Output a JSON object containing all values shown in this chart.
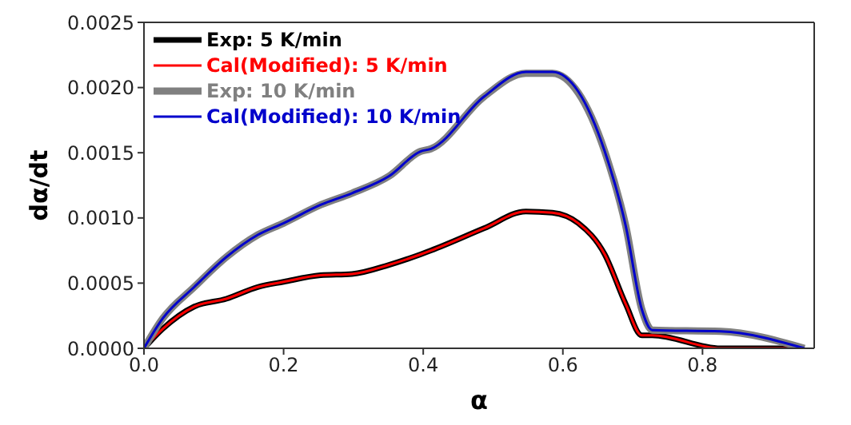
{
  "chart_data": {
    "type": "line",
    "xlabel": "α",
    "ylabel": "dα/dt",
    "xlim": [
      0,
      0.96
    ],
    "ylim": [
      0,
      0.0025
    ],
    "xticks": [
      {
        "value": 0,
        "label": "0.0"
      },
      {
        "value": 0.2,
        "label": "0.2"
      },
      {
        "value": 0.4,
        "label": "0.4"
      },
      {
        "value": 0.6,
        "label": "0.6"
      },
      {
        "value": 0.8,
        "label": "0.8"
      }
    ],
    "yticks": [
      {
        "value": 0,
        "label": "0.0000"
      },
      {
        "value": 0.0005,
        "label": "0.0005"
      },
      {
        "value": 0.001,
        "label": "0.0010"
      },
      {
        "value": 0.0015,
        "label": "0.0015"
      },
      {
        "value": 0.002,
        "label": "0.0020"
      },
      {
        "value": 0.0025,
        "label": "0.0025"
      }
    ],
    "legend": "top left",
    "marker": "none",
    "line_style": "solid",
    "grid": false,
    "x": [
      0,
      0.027,
      0.072,
      0.118,
      0.163,
      0.2,
      0.253,
      0.298,
      0.351,
      0.396,
      0.411,
      0.487,
      0.547,
      0.585,
      0.622,
      0.66,
      0.69,
      0.713,
      0.728,
      0.826,
      0.946
    ],
    "series": [
      {
        "name": "Exp: 5 K/min",
        "color": "#000000",
        "values": [
          0,
          0.00015,
          0.00032,
          0.00038,
          0.00047,
          0.00051,
          0.00056,
          0.00057,
          0.00064,
          0.00072,
          0.00075,
          0.00092,
          0.00105,
          0.00104,
          0.00096,
          0.00072,
          0.00034,
          0.0001,
          0.0001,
          0,
          0
        ]
      },
      {
        "name": "Cal(Modified): 5 K/min",
        "color": "#ff0000",
        "values": [
          0,
          0.00015,
          0.00032,
          0.00038,
          0.00047,
          0.00051,
          0.00056,
          0.00057,
          0.00064,
          0.00072,
          0.00075,
          0.00092,
          0.00105,
          0.00104,
          0.00096,
          0.00072,
          0.00034,
          0.0001,
          0.0001,
          0,
          0
        ]
      },
      {
        "name": "Exp: 10 K/min",
        "color": "#808080",
        "values": [
          0,
          0.00023,
          0.00047,
          0.0007,
          0.00087,
          0.00096,
          0.0011,
          0.00119,
          0.00132,
          0.00151,
          0.00153,
          0.00193,
          0.00211,
          0.00211,
          0.00196,
          0.00151,
          0.00094,
          0.0003,
          0.00014,
          0.00013,
          0
        ]
      },
      {
        "name": "Cal(Modified): 10 K/min",
        "color": "#0000cc",
        "values": [
          0,
          0.00023,
          0.00047,
          0.0007,
          0.00087,
          0.00096,
          0.0011,
          0.00119,
          0.00132,
          0.00151,
          0.00153,
          0.00193,
          0.00212,
          0.00212,
          0.00197,
          0.00151,
          0.00094,
          0.0003,
          0.00014,
          0.00013,
          0
        ]
      }
    ]
  }
}
